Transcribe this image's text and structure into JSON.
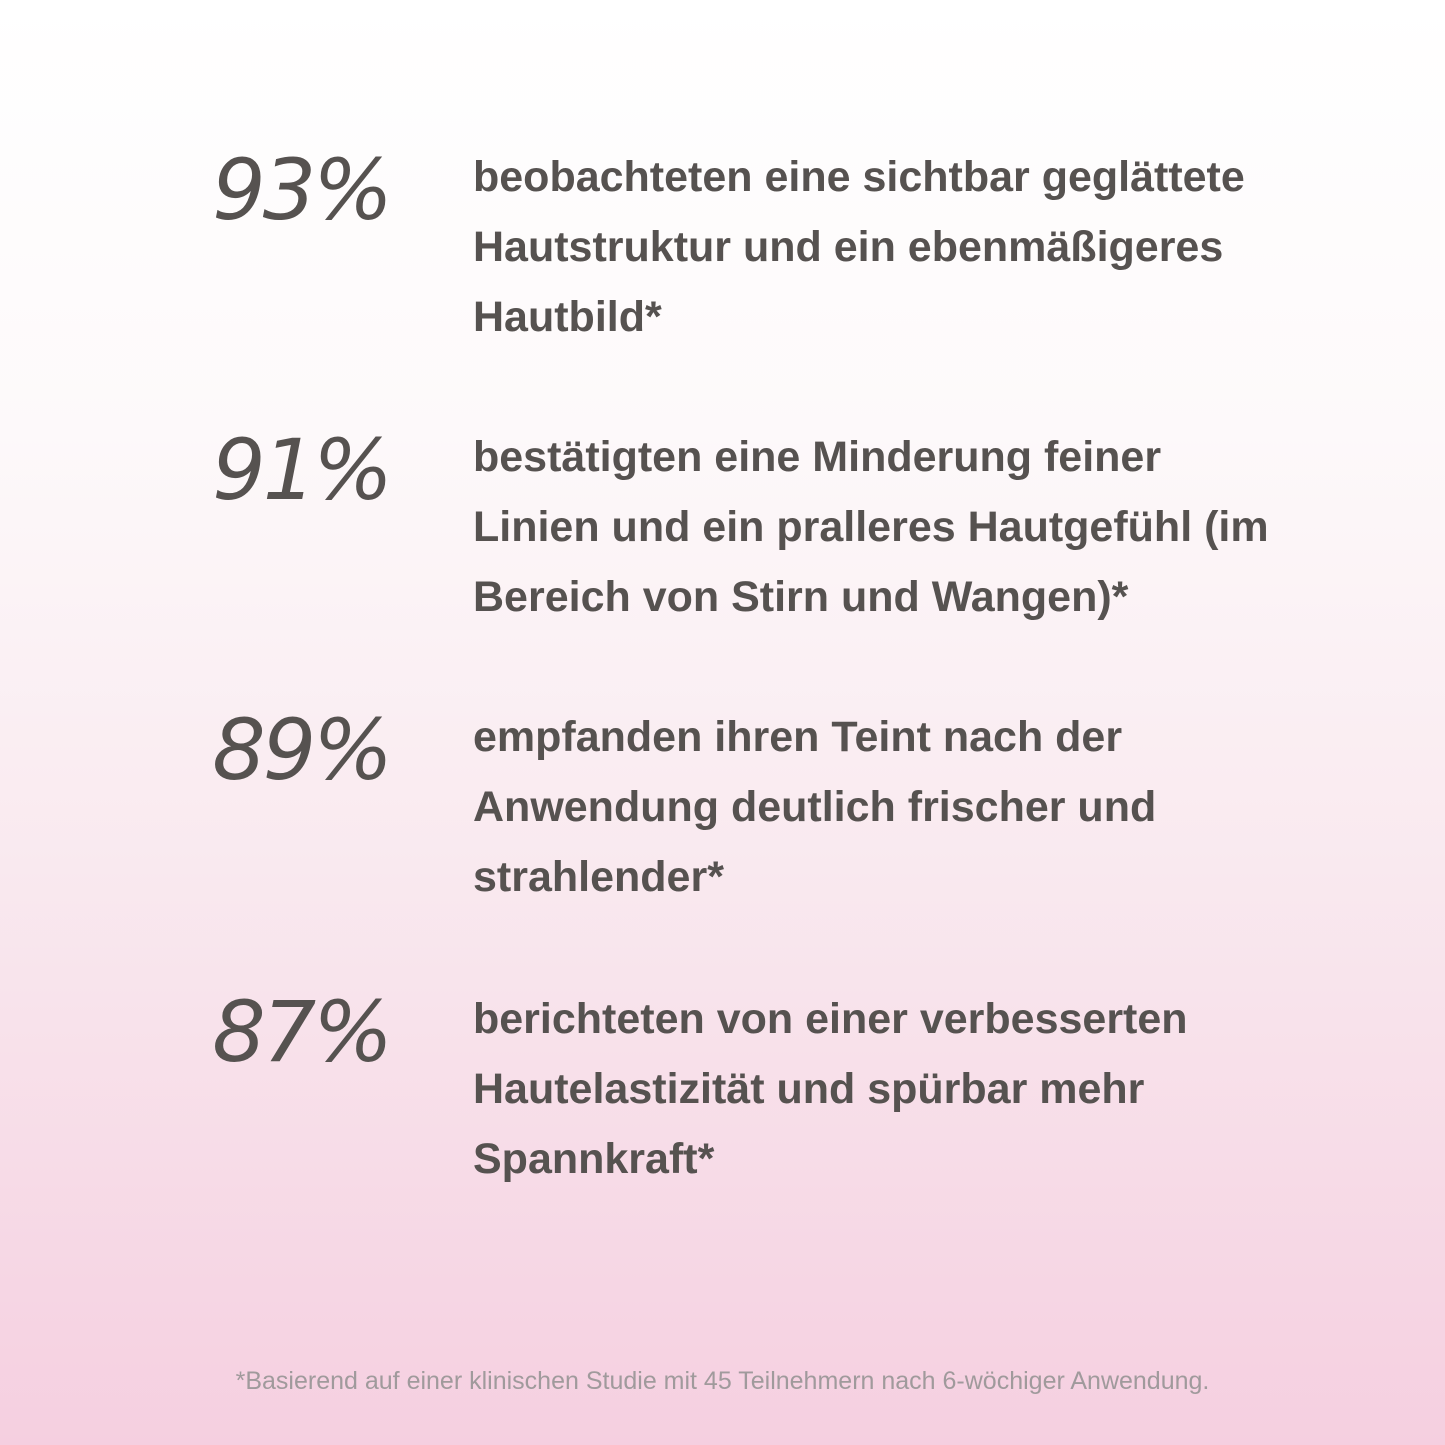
{
  "stats": [
    {
      "percent": "93%",
      "lines": [
        "beobachteten eine sichtbar geglättete",
        "Hautstruktur und ein ebenmäßigeres",
        "Hautbild*"
      ]
    },
    {
      "percent": "91%",
      "lines": [
        "bestätigten eine Minderung feiner",
        "Linien und ein pralleres Hautgefühl (im",
        "Bereich von Stirn und Wangen)*"
      ]
    },
    {
      "percent": "89%",
      "lines": [
        "empfanden ihren Teint nach der",
        "Anwendung deutlich frischer und",
        "strahlender*"
      ]
    },
    {
      "percent": "87%",
      "lines": [
        "berichteten von einer verbesserten",
        "Hautelastizität und spürbar mehr",
        "Spannkraft*"
      ]
    }
  ],
  "footnote": "*Basierend auf einer klinischen Studie mit 45 Teilnehmern nach 6-wöchiger Anwendung.",
  "colors": {
    "text": "#565250",
    "footnote": "#a09a9c",
    "background_top": "#ffffff",
    "background_bottom": "#f5cfe0"
  }
}
